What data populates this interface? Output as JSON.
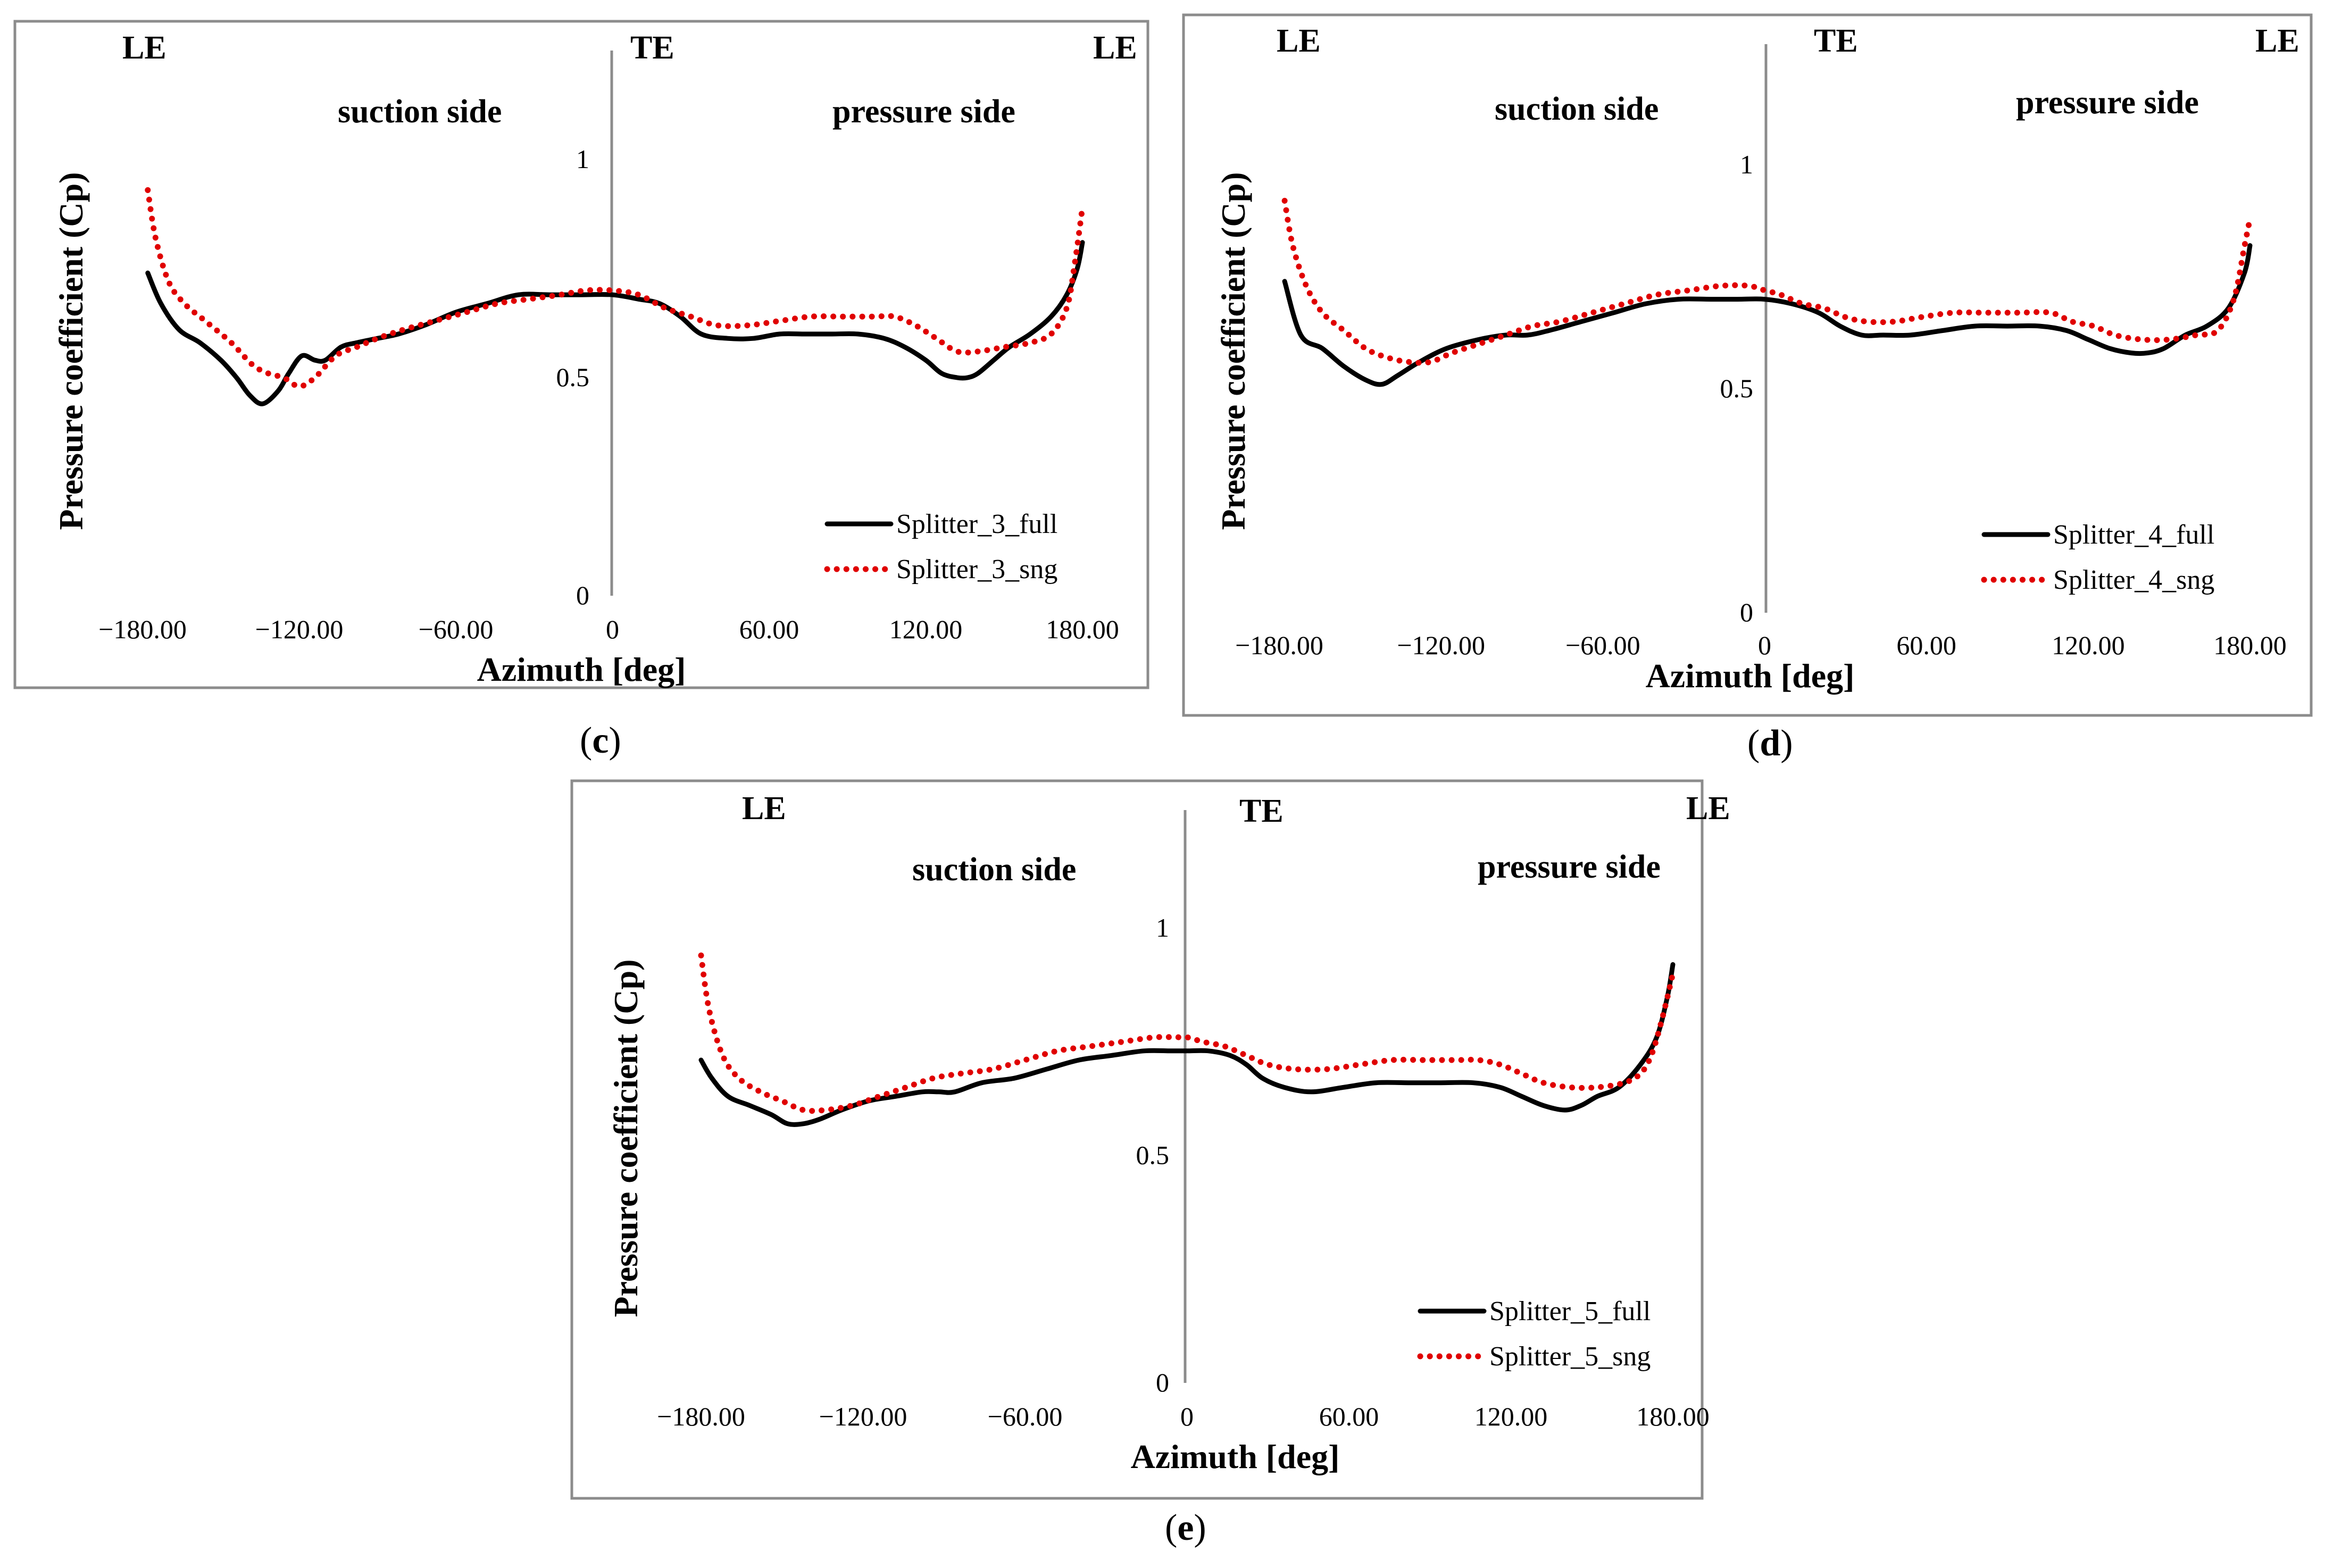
{
  "chart_data": [
    {
      "type": "line",
      "panel_label": "(c)",
      "panel_letter": "c",
      "xlabel": "Azimuth [deg]",
      "ylabel": "Pressure coefficient (Cp)",
      "xlim": [
        -180,
        180
      ],
      "ylim": [
        0,
        1.2
      ],
      "xticks": [
        {
          "value": -180,
          "label": "−180.00"
        },
        {
          "value": -120,
          "label": "−120.00"
        },
        {
          "value": -60,
          "label": "−60.00"
        },
        {
          "value": 0,
          "label": "0"
        },
        {
          "value": 60,
          "label": "60.00"
        },
        {
          "value": 120,
          "label": "120.00"
        },
        {
          "value": 180,
          "label": "180.00"
        }
      ],
      "yticks": [
        {
          "value": 0,
          "label": "0"
        },
        {
          "value": 0.5,
          "label": "0.5"
        },
        {
          "value": 1,
          "label": "1"
        }
      ],
      "annotations": {
        "le_left": "LE",
        "te": "TE",
        "le_right": "LE",
        "suction": "suction side",
        "pressure": "pressure side"
      },
      "series": [
        {
          "name": "Splitter_3_full",
          "style": "solid",
          "color": "#000000",
          "x": [
            -178,
            -173,
            -166,
            -158,
            -150,
            -144,
            -139,
            -134,
            -128,
            -124,
            -119,
            -114,
            -110,
            -104,
            -98,
            -90,
            -82,
            -72,
            -60,
            -48,
            -36,
            -24,
            -12,
            0,
            10,
            18,
            26,
            34,
            44,
            54,
            64,
            74,
            84,
            94,
            104,
            112,
            120,
            126,
            132,
            136,
            140,
            146,
            152,
            160,
            168,
            174,
            178,
            180
          ],
          "y": [
            0.74,
            0.67,
            0.61,
            0.58,
            0.54,
            0.5,
            0.46,
            0.44,
            0.47,
            0.51,
            0.55,
            0.54,
            0.54,
            0.57,
            0.58,
            0.59,
            0.6,
            0.62,
            0.65,
            0.67,
            0.69,
            0.69,
            0.69,
            0.69,
            0.68,
            0.67,
            0.64,
            0.6,
            0.59,
            0.59,
            0.6,
            0.6,
            0.6,
            0.6,
            0.59,
            0.57,
            0.54,
            0.51,
            0.5,
            0.5,
            0.51,
            0.54,
            0.57,
            0.6,
            0.64,
            0.69,
            0.75,
            0.81
          ]
        },
        {
          "name": "Splitter_3_sng",
          "style": "dotted",
          "color": "#e00000",
          "x": [
            -178,
            -175,
            -170,
            -164,
            -156,
            -146,
            -138,
            -132,
            -126,
            -120,
            -114,
            -106,
            -98,
            -90,
            -80,
            -68,
            -56,
            -44,
            -32,
            -20,
            -10,
            0,
            10,
            20,
            30,
            40,
            52,
            64,
            76,
            88,
            100,
            108,
            116,
            124,
            132,
            140,
            150,
            160,
            168,
            174,
            177,
            180
          ],
          "y": [
            0.93,
            0.82,
            0.72,
            0.67,
            0.63,
            0.58,
            0.53,
            0.51,
            0.5,
            0.48,
            0.5,
            0.55,
            0.57,
            0.59,
            0.61,
            0.63,
            0.65,
            0.67,
            0.68,
            0.69,
            0.7,
            0.7,
            0.69,
            0.66,
            0.64,
            0.62,
            0.62,
            0.63,
            0.64,
            0.64,
            0.64,
            0.64,
            0.62,
            0.59,
            0.56,
            0.56,
            0.57,
            0.58,
            0.6,
            0.66,
            0.76,
            0.89
          ]
        }
      ]
    },
    {
      "type": "line",
      "panel_label": "(d)",
      "panel_letter": "d",
      "xlabel": "Azimuth [deg]",
      "ylabel": "Pressure coefficient (Cp)",
      "xlim": [
        -180,
        180
      ],
      "ylim": [
        0,
        1.2
      ],
      "xticks": [
        {
          "value": -180,
          "label": "−180.00"
        },
        {
          "value": -120,
          "label": "−120.00"
        },
        {
          "value": -60,
          "label": "−60.00"
        },
        {
          "value": 0,
          "label": "0"
        },
        {
          "value": 60,
          "label": "60.00"
        },
        {
          "value": 120,
          "label": "120.00"
        },
        {
          "value": 180,
          "label": "180.00"
        }
      ],
      "yticks": [
        {
          "value": 0,
          "label": "0"
        },
        {
          "value": 0.5,
          "label": "0.5"
        },
        {
          "value": 1,
          "label": "1"
        }
      ],
      "annotations": {
        "le_left": "LE",
        "te": "TE",
        "le_right": "LE",
        "suction": "suction side",
        "pressure": "pressure side"
      },
      "series": [
        {
          "name": "Splitter_4_full",
          "style": "solid",
          "color": "#000000",
          "x": [
            -178,
            -172,
            -164,
            -156,
            -148,
            -142,
            -136,
            -128,
            -118,
            -106,
            -96,
            -88,
            -80,
            -68,
            -56,
            -44,
            -32,
            -20,
            -10,
            0,
            10,
            20,
            28,
            36,
            44,
            54,
            66,
            78,
            90,
            102,
            112,
            120,
            128,
            136,
            142,
            148,
            156,
            164,
            172,
            178,
            180
          ],
          "y": [
            0.74,
            0.62,
            0.59,
            0.55,
            0.52,
            0.51,
            0.53,
            0.56,
            0.59,
            0.61,
            0.62,
            0.62,
            0.63,
            0.65,
            0.67,
            0.69,
            0.7,
            0.7,
            0.7,
            0.7,
            0.69,
            0.67,
            0.64,
            0.62,
            0.62,
            0.62,
            0.63,
            0.64,
            0.64,
            0.64,
            0.63,
            0.61,
            0.59,
            0.58,
            0.58,
            0.59,
            0.62,
            0.64,
            0.68,
            0.76,
            0.82
          ]
        },
        {
          "name": "Splitter_4_sng",
          "style": "dotted",
          "color": "#e00000",
          "x": [
            -178,
            -175,
            -170,
            -164,
            -156,
            -148,
            -140,
            -132,
            -124,
            -116,
            -106,
            -96,
            -86,
            -76,
            -64,
            -52,
            -40,
            -28,
            -16,
            -6,
            0,
            6,
            14,
            22,
            30,
            38,
            48,
            58,
            70,
            82,
            94,
            106,
            114,
            122,
            130,
            140,
            150,
            160,
            168,
            174,
            178,
            180
          ],
          "y": [
            0.92,
            0.82,
            0.73,
            0.67,
            0.63,
            0.59,
            0.57,
            0.56,
            0.56,
            0.58,
            0.6,
            0.62,
            0.64,
            0.65,
            0.67,
            0.69,
            0.71,
            0.72,
            0.73,
            0.73,
            0.72,
            0.71,
            0.69,
            0.68,
            0.66,
            0.65,
            0.65,
            0.66,
            0.67,
            0.67,
            0.67,
            0.67,
            0.65,
            0.64,
            0.62,
            0.61,
            0.61,
            0.62,
            0.63,
            0.7,
            0.82,
            0.88
          ]
        }
      ]
    },
    {
      "type": "line",
      "panel_label": "(e)",
      "panel_letter": "e",
      "xlabel": "Azimuth [deg]",
      "ylabel": "Pressure coefficient (Cp)",
      "xlim": [
        -180,
        180
      ],
      "ylim": [
        0,
        1.2
      ],
      "xticks": [
        {
          "value": -180,
          "label": "−180.00"
        },
        {
          "value": -120,
          "label": "−120.00"
        },
        {
          "value": -60,
          "label": "−60.00"
        },
        {
          "value": 0,
          "label": "0"
        },
        {
          "value": 60,
          "label": "60.00"
        },
        {
          "value": 120,
          "label": "120.00"
        },
        {
          "value": 180,
          "label": "180.00"
        }
      ],
      "yticks": [
        {
          "value": 0,
          "label": "0"
        },
        {
          "value": 0.5,
          "label": "0.5"
        },
        {
          "value": 1,
          "label": "1"
        }
      ],
      "annotations": {
        "le_left": "LE",
        "te": "TE",
        "le_right": "LE",
        "suction": "suction side",
        "pressure": "pressure side"
      },
      "series": [
        {
          "name": "Splitter_5_full",
          "style": "solid",
          "color": "#000000",
          "x": [
            -180,
            -176,
            -170,
            -162,
            -154,
            -148,
            -142,
            -136,
            -128,
            -118,
            -108,
            -98,
            -92,
            -86,
            -76,
            -64,
            -52,
            -40,
            -28,
            -16,
            -6,
            0,
            8,
            16,
            22,
            28,
            36,
            46,
            58,
            70,
            82,
            94,
            106,
            116,
            124,
            132,
            140,
            146,
            152,
            160,
            168,
            174,
            178,
            180
          ],
          "y": [
            0.71,
            0.67,
            0.63,
            0.61,
            0.59,
            0.57,
            0.57,
            0.58,
            0.6,
            0.62,
            0.63,
            0.64,
            0.64,
            0.64,
            0.66,
            0.67,
            0.69,
            0.71,
            0.72,
            0.73,
            0.73,
            0.73,
            0.73,
            0.72,
            0.7,
            0.67,
            0.65,
            0.64,
            0.65,
            0.66,
            0.66,
            0.66,
            0.66,
            0.65,
            0.63,
            0.61,
            0.6,
            0.61,
            0.63,
            0.65,
            0.7,
            0.76,
            0.85,
            0.92
          ]
        },
        {
          "name": "Splitter_5_sng",
          "style": "dotted",
          "color": "#e00000",
          "x": [
            -180,
            -177,
            -172,
            -166,
            -158,
            -150,
            -142,
            -134,
            -124,
            -114,
            -104,
            -94,
            -84,
            -72,
            -60,
            -48,
            -36,
            -24,
            -12,
            -4,
            0,
            6,
            14,
            22,
            30,
            40,
            52,
            64,
            76,
            88,
            100,
            108,
            116,
            124,
            132,
            142,
            152,
            162,
            168,
            172,
            176,
            180
          ],
          "y": [
            0.94,
            0.82,
            0.72,
            0.67,
            0.64,
            0.62,
            0.6,
            0.6,
            0.61,
            0.63,
            0.65,
            0.67,
            0.68,
            0.69,
            0.71,
            0.73,
            0.74,
            0.75,
            0.76,
            0.76,
            0.76,
            0.75,
            0.74,
            0.72,
            0.7,
            0.69,
            0.69,
            0.7,
            0.71,
            0.71,
            0.71,
            0.71,
            0.7,
            0.68,
            0.66,
            0.65,
            0.65,
            0.66,
            0.68,
            0.72,
            0.8,
            0.9
          ]
        }
      ]
    }
  ]
}
